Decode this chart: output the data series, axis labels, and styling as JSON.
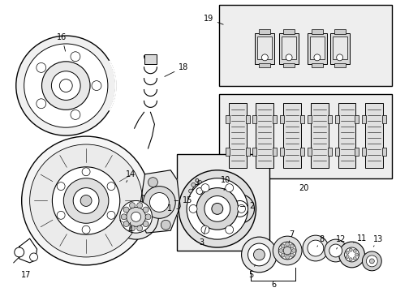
{
  "bg_color": "#ffffff",
  "lc": "#000000",
  "box_fill": "#e8e8e8",
  "figsize": [
    4.89,
    3.6
  ],
  "dpi": 100,
  "fs": 7.0
}
